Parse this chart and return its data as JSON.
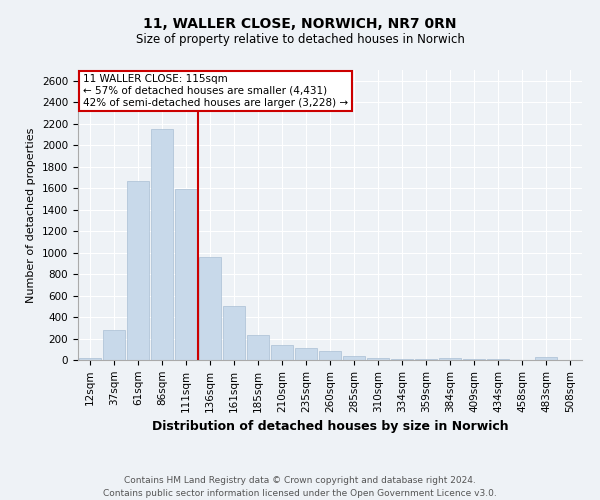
{
  "title1": "11, WALLER CLOSE, NORWICH, NR7 0RN",
  "title2": "Size of property relative to detached houses in Norwich",
  "xlabel": "Distribution of detached houses by size in Norwich",
  "ylabel": "Number of detached properties",
  "categories": [
    "12sqm",
    "37sqm",
    "61sqm",
    "86sqm",
    "111sqm",
    "136sqm",
    "161sqm",
    "185sqm",
    "210sqm",
    "235sqm",
    "260sqm",
    "285sqm",
    "310sqm",
    "334sqm",
    "359sqm",
    "384sqm",
    "409sqm",
    "434sqm",
    "458sqm",
    "483sqm",
    "508sqm"
  ],
  "values": [
    20,
    280,
    1670,
    2150,
    1590,
    960,
    500,
    235,
    140,
    115,
    80,
    40,
    20,
    10,
    10,
    18,
    5,
    5,
    3,
    25,
    0
  ],
  "bar_color": "#c8d9ea",
  "bar_edgecolor": "#aabfd4",
  "property_line_label": "11 WALLER CLOSE: 115sqm",
  "annotation_line1": "← 57% of detached houses are smaller (4,431)",
  "annotation_line2": "42% of semi-detached houses are larger (3,228) →",
  "annotation_box_color": "#ffffff",
  "annotation_box_edgecolor": "#cc0000",
  "property_line_color": "#cc0000",
  "ylim": [
    0,
    2700
  ],
  "yticks": [
    0,
    200,
    400,
    600,
    800,
    1000,
    1200,
    1400,
    1600,
    1800,
    2000,
    2200,
    2400,
    2600
  ],
  "footer1": "Contains HM Land Registry data © Crown copyright and database right 2024.",
  "footer2": "Contains public sector information licensed under the Open Government Licence v3.0.",
  "bg_color": "#eef2f6",
  "plot_bg_color": "#eef2f6",
  "grid_color": "#ffffff",
  "title1_fontsize": 10,
  "title2_fontsize": 8.5,
  "xlabel_fontsize": 9,
  "ylabel_fontsize": 8,
  "tick_fontsize": 7.5,
  "footer_fontsize": 6.5,
  "ann_fontsize": 7.5
}
